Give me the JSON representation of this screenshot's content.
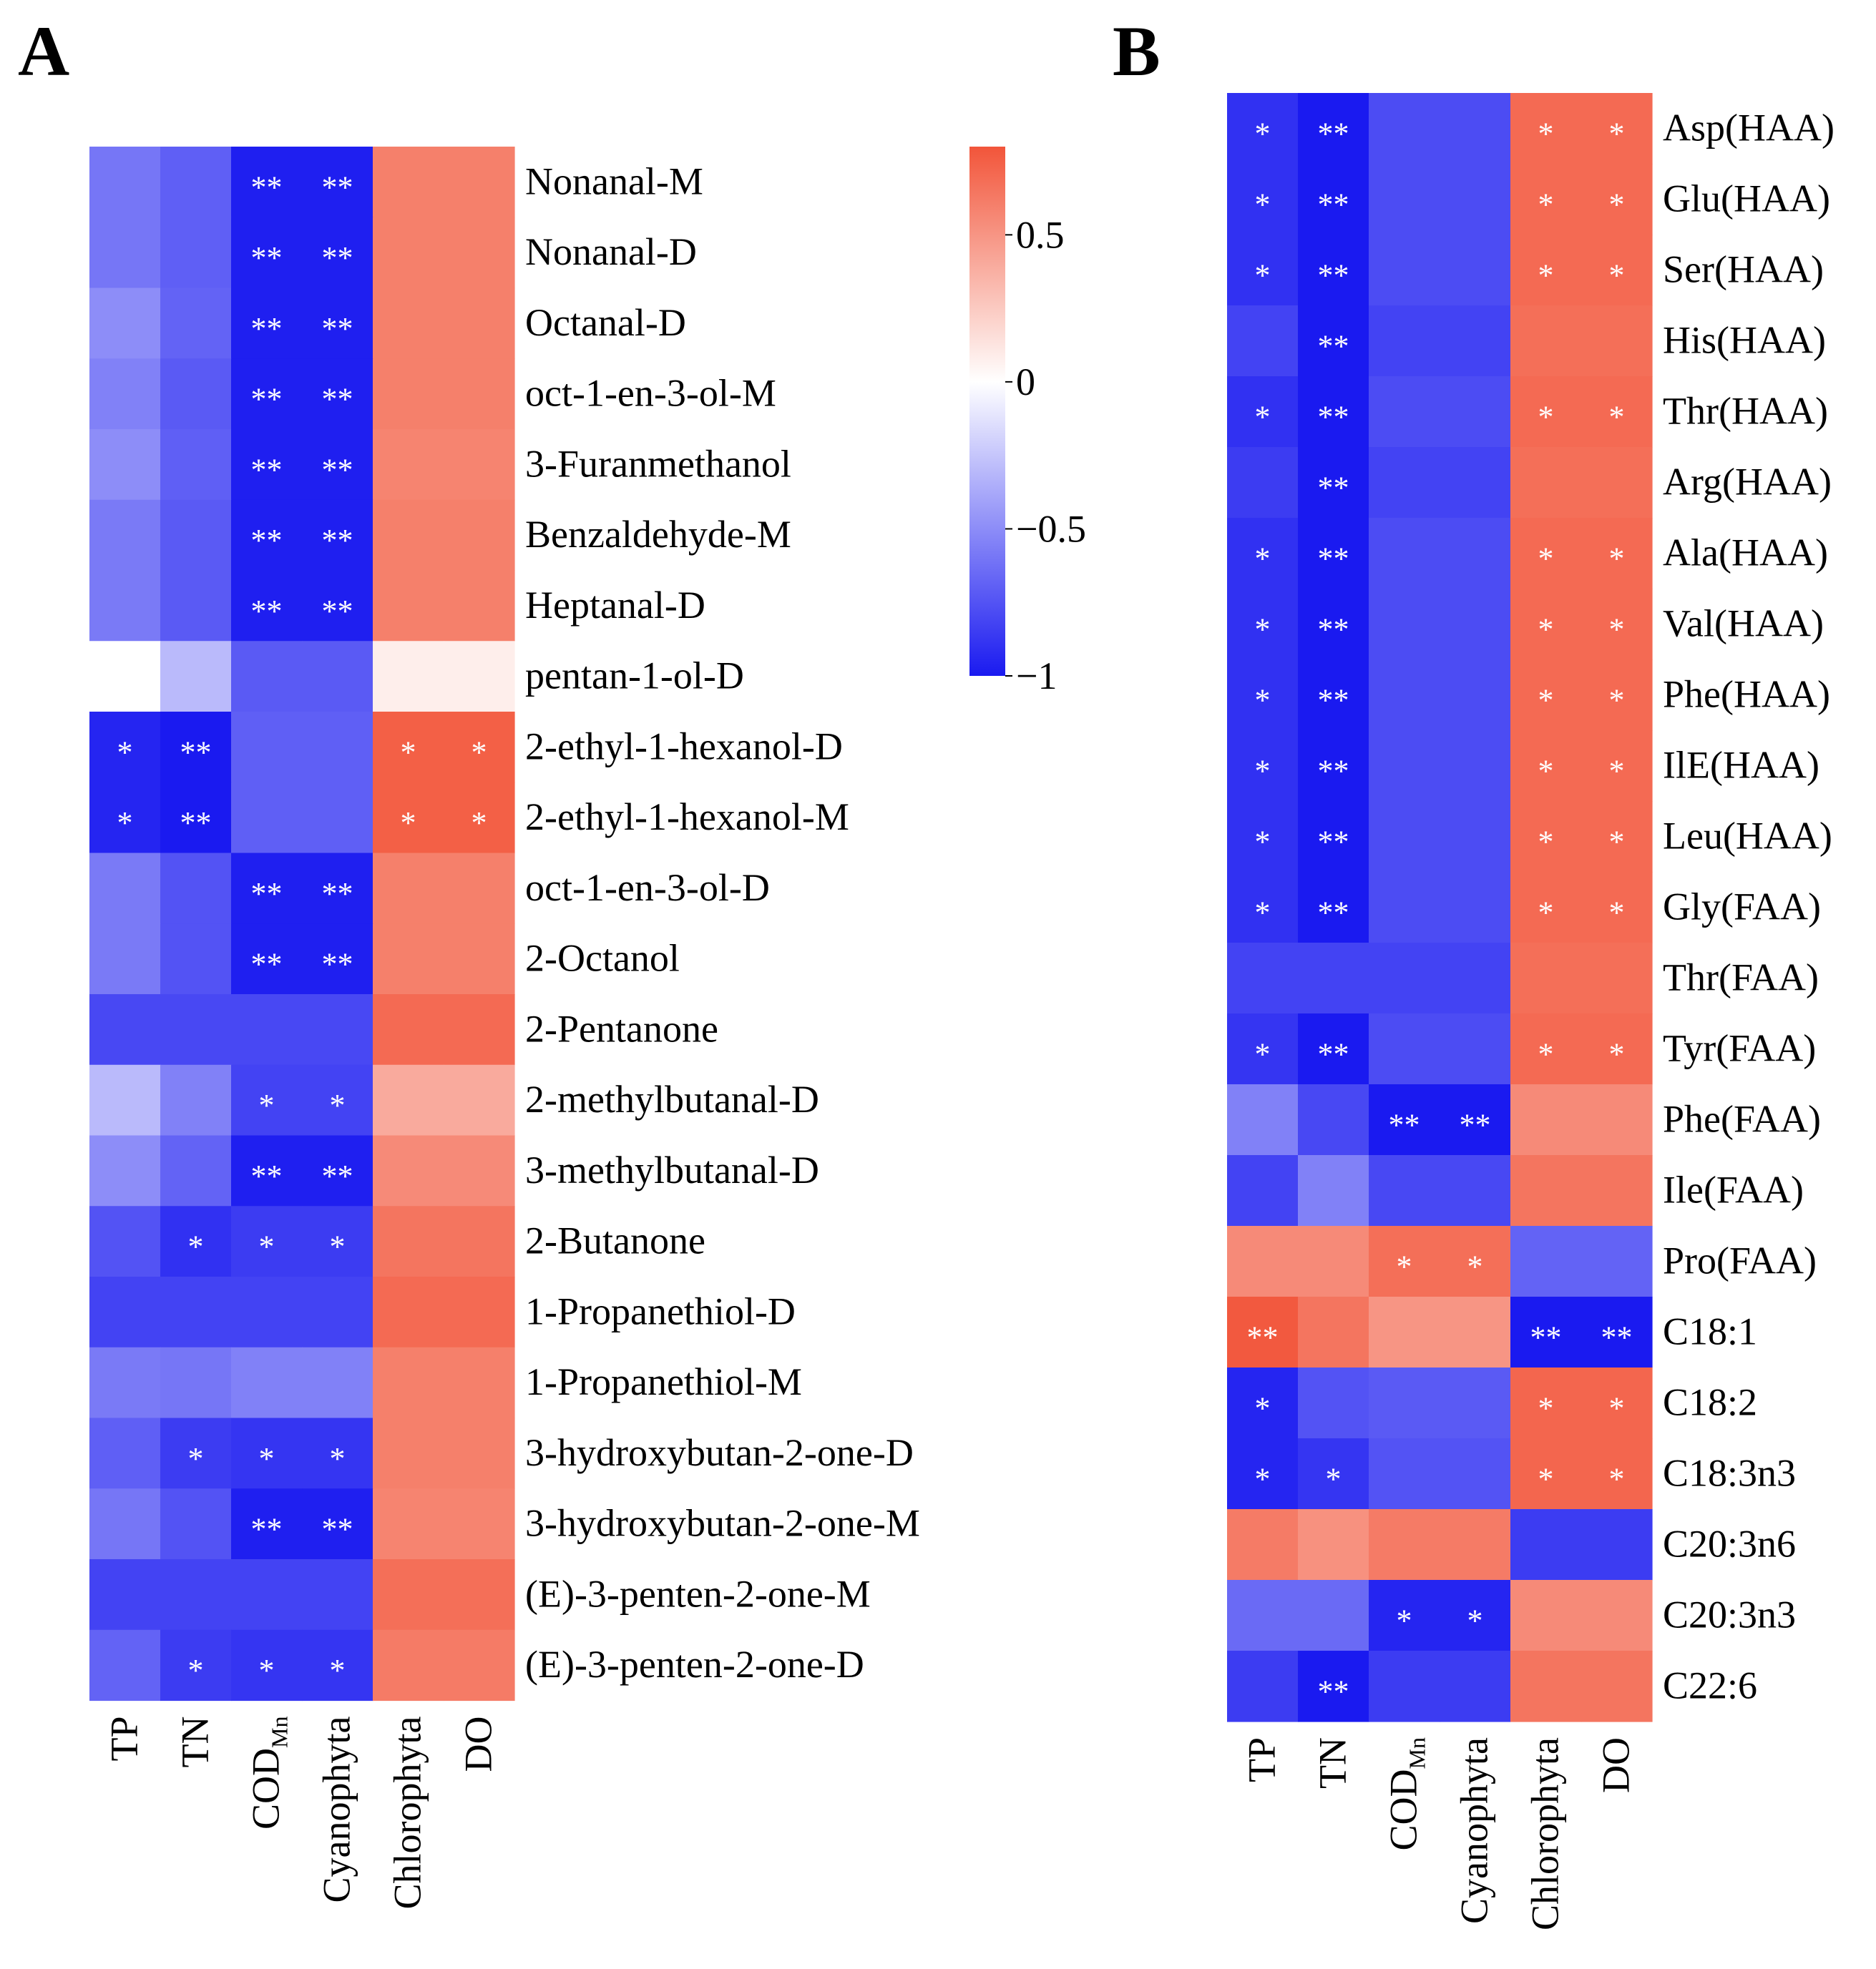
{
  "chart_data": [
    {
      "type": "heatmap",
      "panel_label": "A",
      "columns": [
        "TP",
        "TN",
        "COD",
        "Cyanophyta",
        "Chlorophyta",
        "DO"
      ],
      "cod_subscript": "Mn",
      "rows": [
        "Nonanal-M",
        "Nonanal-D",
        "Octanal-D",
        "oct-1-en-3-ol-M",
        "3-Furanmethanol",
        "Benzaldehyde-M",
        "Heptanal-D",
        "pentan-1-ol-D",
        "2-ethyl-1-hexanol-D",
        "2-ethyl-1-hexanol-M",
        "oct-1-en-3-ol-D",
        "2-Octanol",
        "2-Pentanone",
        "2-methylbutanal-D",
        "3-methylbutanal-D",
        "2-Butanone",
        "1-Propanethiol-D",
        "1-Propanethiol-M",
        "3-hydroxybutan-2-one-D",
        "3-hydroxybutan-2-one-M",
        "(E)-3-penten-2-one-M",
        "(E)-3-penten-2-one-D"
      ],
      "values": [
        [
          -0.6,
          -0.7,
          -0.98,
          -0.98,
          0.6,
          0.6
        ],
        [
          -0.6,
          -0.7,
          -0.98,
          -0.98,
          0.6,
          0.6
        ],
        [
          -0.5,
          -0.68,
          -0.98,
          -0.98,
          0.6,
          0.6
        ],
        [
          -0.55,
          -0.72,
          -0.98,
          -0.98,
          0.6,
          0.6
        ],
        [
          -0.5,
          -0.7,
          -0.98,
          -0.98,
          0.58,
          0.58
        ],
        [
          -0.58,
          -0.72,
          -0.98,
          -0.98,
          0.6,
          0.6
        ],
        [
          -0.58,
          -0.72,
          -0.98,
          -0.98,
          0.6,
          0.6
        ],
        [
          0.0,
          -0.3,
          -0.72,
          -0.72,
          0.08,
          0.08
        ],
        [
          -0.95,
          -1.0,
          -0.7,
          -0.7,
          0.75,
          0.75
        ],
        [
          -0.95,
          -1.0,
          -0.7,
          -0.7,
          0.75,
          0.75
        ],
        [
          -0.58,
          -0.75,
          -0.98,
          -0.98,
          0.6,
          0.6
        ],
        [
          -0.58,
          -0.75,
          -0.98,
          -0.98,
          0.6,
          0.6
        ],
        [
          -0.8,
          -0.8,
          -0.8,
          -0.8,
          0.7,
          0.7
        ],
        [
          -0.3,
          -0.55,
          -0.82,
          -0.82,
          0.4,
          0.4
        ],
        [
          -0.5,
          -0.68,
          -0.98,
          -0.98,
          0.55,
          0.55
        ],
        [
          -0.75,
          -0.9,
          -0.85,
          -0.85,
          0.65,
          0.65
        ],
        [
          -0.82,
          -0.82,
          -0.82,
          -0.82,
          0.7,
          0.7
        ],
        [
          -0.58,
          -0.6,
          -0.55,
          -0.55,
          0.6,
          0.6
        ],
        [
          -0.7,
          -0.85,
          -0.88,
          -0.88,
          0.6,
          0.6
        ],
        [
          -0.6,
          -0.75,
          -0.98,
          -0.98,
          0.58,
          0.58
        ],
        [
          -0.82,
          -0.82,
          -0.82,
          -0.82,
          0.68,
          0.68
        ],
        [
          -0.68,
          -0.85,
          -0.88,
          -0.88,
          0.62,
          0.62
        ]
      ],
      "significance": [
        [
          "",
          "",
          "**",
          "**",
          "",
          ""
        ],
        [
          "",
          "",
          "**",
          "**",
          "",
          ""
        ],
        [
          "",
          "",
          "**",
          "**",
          "",
          ""
        ],
        [
          "",
          "",
          "**",
          "**",
          "",
          ""
        ],
        [
          "",
          "",
          "**",
          "**",
          "",
          ""
        ],
        [
          "",
          "",
          "**",
          "**",
          "",
          ""
        ],
        [
          "",
          "",
          "**",
          "**",
          "",
          ""
        ],
        [
          "",
          "",
          "",
          "",
          "",
          ""
        ],
        [
          "*",
          "**",
          "",
          "",
          "*",
          "*"
        ],
        [
          "*",
          "**",
          "",
          "",
          "*",
          "*"
        ],
        [
          "",
          "",
          "**",
          "**",
          "",
          ""
        ],
        [
          "",
          "",
          "**",
          "**",
          "",
          ""
        ],
        [
          "",
          "",
          "",
          "",
          "",
          ""
        ],
        [
          "",
          "",
          "*",
          "*",
          "",
          ""
        ],
        [
          "",
          "",
          "**",
          "**",
          "",
          ""
        ],
        [
          "",
          "*",
          "*",
          "*",
          "",
          ""
        ],
        [
          "",
          "",
          "",
          "",
          "",
          ""
        ],
        [
          "",
          "",
          "",
          "",
          "",
          ""
        ],
        [
          "",
          "*",
          "*",
          "*",
          "",
          ""
        ],
        [
          "",
          "",
          "**",
          "**",
          "",
          ""
        ],
        [
          "",
          "",
          "",
          "",
          "",
          ""
        ],
        [
          "",
          "*",
          "*",
          "*",
          "",
          ""
        ]
      ]
    },
    {
      "type": "heatmap",
      "panel_label": "B",
      "columns": [
        "TP",
        "TN",
        "COD",
        "Cyanophyta",
        "Chlorophyta",
        "DO"
      ],
      "cod_subscript": "Mn",
      "rows": [
        "Asp(HAA)",
        "Glu(HAA)",
        "Ser(HAA)",
        "His(HAA)",
        "Thr(HAA)",
        "Arg(HAA)",
        "Ala(HAA)",
        "Val(HAA)",
        "Phe(HAA)",
        "IlE(HAA)",
        "Leu(HAA)",
        "Gly(FAA)",
        "Thr(FAA)",
        "Tyr(FAA)",
        "Phe(FAA)",
        "Ile(FAA)",
        "Pro(FAA)",
        "C18:1",
        "C18:2",
        "C18:3n3",
        "C20:3n6",
        "C20:3n3",
        "C22:6"
      ],
      "values": [
        [
          -0.9,
          -1.0,
          -0.78,
          -0.78,
          0.7,
          0.7
        ],
        [
          -0.9,
          -1.0,
          -0.78,
          -0.78,
          0.7,
          0.7
        ],
        [
          -0.9,
          -1.0,
          -0.78,
          -0.78,
          0.7,
          0.7
        ],
        [
          -0.82,
          -1.0,
          -0.82,
          -0.82,
          0.68,
          0.68
        ],
        [
          -0.9,
          -1.0,
          -0.78,
          -0.78,
          0.7,
          0.7
        ],
        [
          -0.85,
          -1.0,
          -0.82,
          -0.82,
          0.68,
          0.68
        ],
        [
          -0.9,
          -1.0,
          -0.78,
          -0.78,
          0.7,
          0.7
        ],
        [
          -0.9,
          -1.0,
          -0.78,
          -0.78,
          0.7,
          0.7
        ],
        [
          -0.9,
          -1.0,
          -0.78,
          -0.78,
          0.7,
          0.7
        ],
        [
          -0.9,
          -1.0,
          -0.78,
          -0.78,
          0.7,
          0.7
        ],
        [
          -0.9,
          -1.0,
          -0.78,
          -0.78,
          0.7,
          0.7
        ],
        [
          -0.9,
          -1.0,
          -0.78,
          -0.78,
          0.7,
          0.7
        ],
        [
          -0.82,
          -0.82,
          -0.82,
          -0.82,
          0.68,
          0.68
        ],
        [
          -0.88,
          -1.0,
          -0.78,
          -0.78,
          0.7,
          0.7
        ],
        [
          -0.55,
          -0.8,
          -1.0,
          -1.0,
          0.55,
          0.55
        ],
        [
          -0.82,
          -0.55,
          -0.8,
          -0.8,
          0.65,
          0.65
        ],
        [
          0.55,
          0.55,
          0.68,
          0.68,
          -0.68,
          -0.68
        ],
        [
          0.78,
          0.65,
          0.5,
          0.5,
          -1.0,
          -1.0
        ],
        [
          -0.95,
          -0.75,
          -0.72,
          -0.72,
          0.72,
          0.72
        ],
        [
          -0.95,
          -0.88,
          -0.75,
          -0.75,
          0.72,
          0.72
        ],
        [
          0.62,
          0.52,
          0.62,
          0.62,
          -0.85,
          -0.85
        ],
        [
          -0.65,
          -0.65,
          -0.95,
          -0.95,
          0.55,
          0.55
        ],
        [
          -0.85,
          -1.0,
          -0.85,
          -0.85,
          0.65,
          0.65
        ]
      ],
      "significance": [
        [
          "*",
          "**",
          "",
          "",
          "*",
          "*"
        ],
        [
          "*",
          "**",
          "",
          "",
          "*",
          "*"
        ],
        [
          "*",
          "**",
          "",
          "",
          "*",
          "*"
        ],
        [
          "",
          "**",
          "",
          "",
          "",
          ""
        ],
        [
          "*",
          "**",
          "",
          "",
          "*",
          "*"
        ],
        [
          "",
          "**",
          "",
          "",
          "",
          ""
        ],
        [
          "*",
          "**",
          "",
          "",
          "*",
          "*"
        ],
        [
          "*",
          "**",
          "",
          "",
          "*",
          "*"
        ],
        [
          "*",
          "**",
          "",
          "",
          "*",
          "*"
        ],
        [
          "*",
          "**",
          "",
          "",
          "*",
          "*"
        ],
        [
          "*",
          "**",
          "",
          "",
          "*",
          "*"
        ],
        [
          "*",
          "**",
          "",
          "",
          "*",
          "*"
        ],
        [
          "",
          "",
          "",
          "",
          "",
          ""
        ],
        [
          "*",
          "**",
          "",
          "",
          "*",
          "*"
        ],
        [
          "",
          "",
          "**",
          "**",
          "",
          ""
        ],
        [
          "",
          "",
          "",
          "",
          "",
          ""
        ],
        [
          "",
          "",
          "*",
          "*",
          "",
          ""
        ],
        [
          "**",
          "",
          "",
          "",
          "**",
          "**"
        ],
        [
          "*",
          "",
          "",
          "",
          "*",
          "*"
        ],
        [
          "*",
          "*",
          "",
          "",
          "*",
          "*"
        ],
        [
          "",
          "",
          "",
          "",
          "",
          ""
        ],
        [
          "",
          "",
          "*",
          "*",
          "",
          ""
        ],
        [
          "",
          "**",
          "",
          "",
          "",
          ""
        ]
      ]
    }
  ],
  "colorbar": {
    "range": [
      -1,
      0.8
    ],
    "ticks": [
      0.5,
      0,
      -0.5,
      -1
    ],
    "tick_labels": [
      "0.5",
      "0",
      "−0.5",
      "−1"
    ],
    "colors": {
      "negative": "#1a1af0",
      "zero": "#ffffff",
      "positive": "#f2553a"
    }
  }
}
